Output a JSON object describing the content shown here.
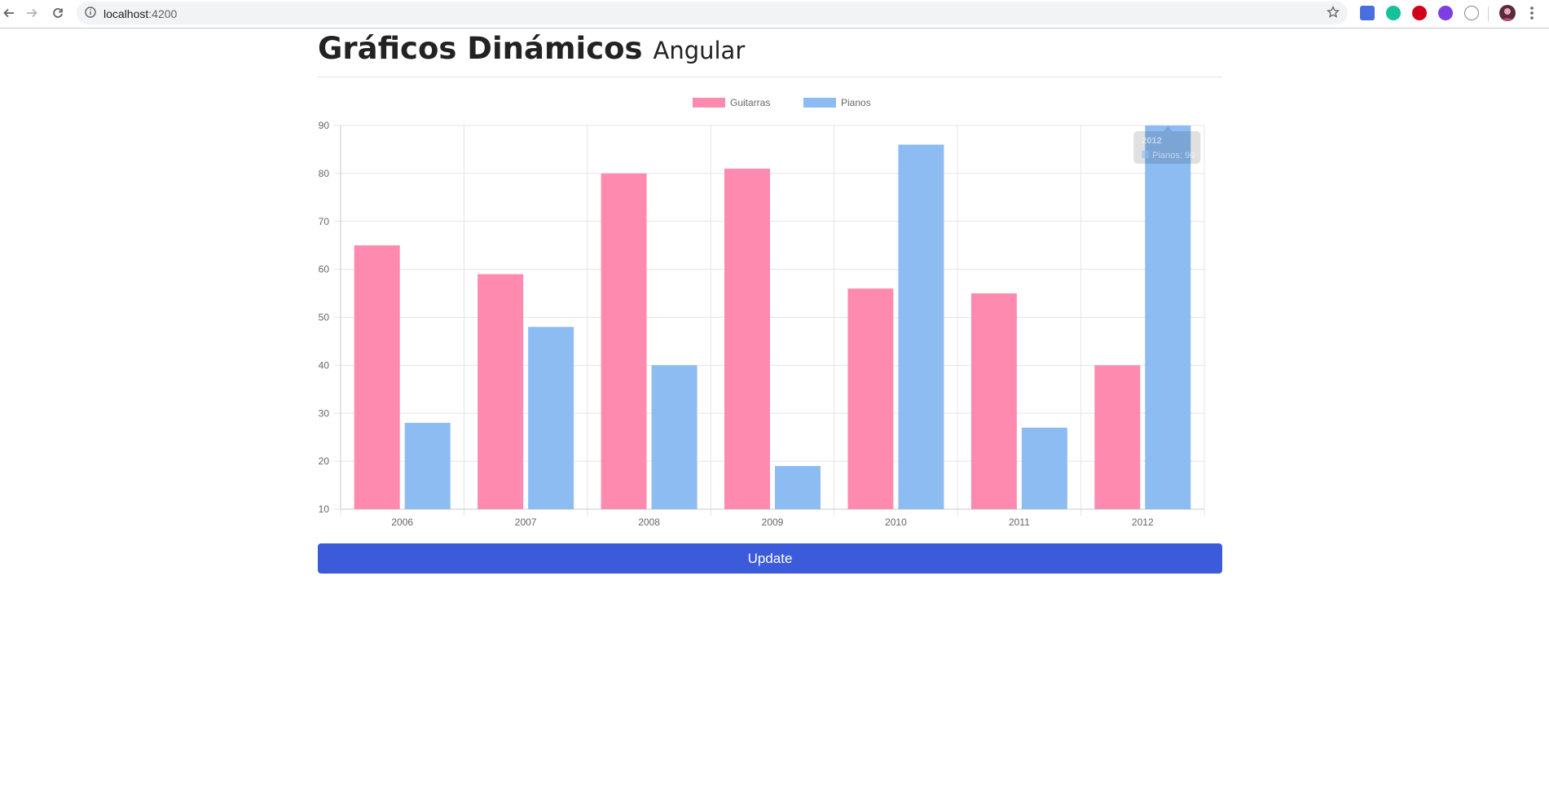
{
  "browser": {
    "url_host": "localhost",
    "url_port": ":4200"
  },
  "page": {
    "title": "Gráficos Dinámicos",
    "subtitle": "Angular",
    "update_label": "Update"
  },
  "colors": {
    "guitarras": "#ff8ab0",
    "pianos": "#8cbcf2",
    "button": "#3b5bdb"
  },
  "chart_data": {
    "type": "bar",
    "categories": [
      "2006",
      "2007",
      "2008",
      "2009",
      "2010",
      "2011",
      "2012"
    ],
    "series": [
      {
        "name": "Guitarras",
        "values": [
          65,
          59,
          80,
          81,
          56,
          55,
          40
        ]
      },
      {
        "name": "Pianos",
        "values": [
          28,
          48,
          40,
          19,
          86,
          27,
          90
        ]
      }
    ],
    "ylim": [
      10,
      90
    ],
    "yticks": [
      10,
      20,
      30,
      40,
      50,
      60,
      70,
      80,
      90
    ],
    "legend_position": "top-center",
    "grid": true,
    "tooltip": {
      "title": "2012",
      "label": "Pianos: 90"
    }
  }
}
